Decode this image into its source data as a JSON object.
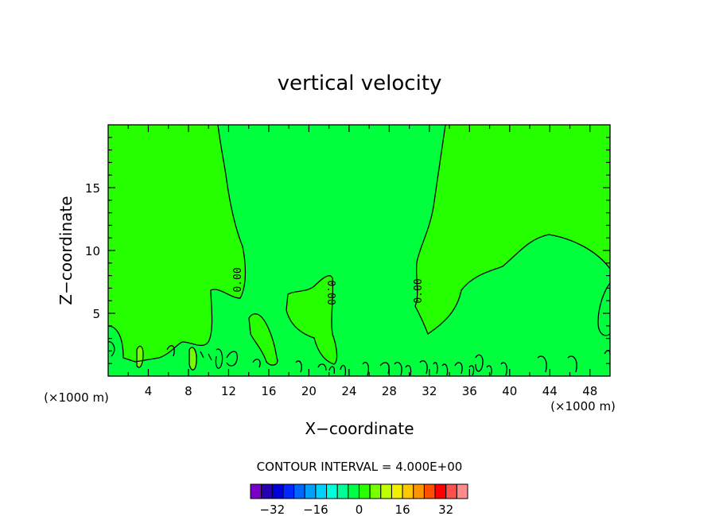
{
  "chart_data": {
    "type": "contour",
    "title": "vertical velocity",
    "xlabel": "X−coordinate",
    "ylabel": "Z−coordinate",
    "x_units_left": "(×1000 m)",
    "x_units_right": "(×1000 m)",
    "xlim": [
      0,
      50
    ],
    "ylim": [
      0,
      20
    ],
    "xticks": [
      "4",
      "8",
      "12",
      "16",
      "20",
      "24",
      "28",
      "32",
      "36",
      "40",
      "44",
      "48"
    ],
    "yticks": [
      "5",
      "10",
      "15"
    ],
    "contour_labels": [
      "0.00",
      "0.00",
      "0.00"
    ],
    "contour_interval_text": "CONTOUR INTERVAL = 4.000E+00",
    "colorbar_ticks": [
      "−32",
      "−16",
      "0",
      "16",
      "32"
    ],
    "colors": {
      "positive_fill": "#26ff00",
      "near_zero_fill": "#00ff3c",
      "small_positive_fill": "#72ff00",
      "contour_line": "#000000"
    },
    "colorbar_colors": [
      "#7a00c8",
      "#2800b4",
      "#0000dc",
      "#0028ff",
      "#0064ff",
      "#00a0ff",
      "#00d2ff",
      "#00ffdc",
      "#00ff96",
      "#00ff46",
      "#28ff00",
      "#78ff00",
      "#bfff00",
      "#f0f000",
      "#ffc800",
      "#ff9600",
      "#ff5000",
      "#ff0000",
      "#ff5050",
      "#ff8c8c"
    ]
  }
}
